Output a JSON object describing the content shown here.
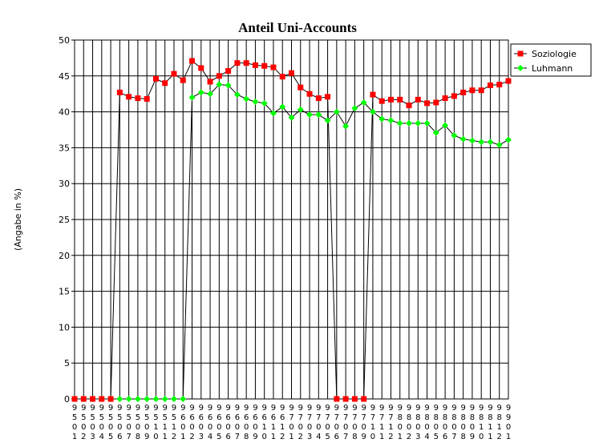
{
  "chart_data": {
    "type": "line",
    "title": "Anteil Uni-Accounts",
    "y_label": "(Angabe in %)",
    "categories": [
      "9501",
      "9502",
      "9503",
      "9504",
      "9505",
      "9506",
      "9507",
      "9508",
      "9509",
      "9510",
      "9511",
      "9512",
      "9601",
      "9602",
      "9603",
      "9604",
      "9605",
      "9606",
      "9607",
      "9608",
      "9609",
      "9610",
      "9611",
      "9612",
      "9701",
      "9702",
      "9703",
      "9704",
      "9705",
      "9706",
      "9707",
      "9708",
      "9709",
      "9710",
      "9711",
      "9712",
      "9801",
      "9802",
      "9803",
      "9804",
      "9805",
      "9806",
      "9807",
      "9808",
      "9809",
      "9810",
      "9811",
      "9812",
      "9901"
    ],
    "series": [
      {
        "name": "Soziologie",
        "color": "#ff0000",
        "marker": "square",
        "values": [
          0,
          0,
          0,
          0,
          0,
          42.7,
          42.1,
          41.9,
          41.8,
          44.6,
          44.0,
          45.3,
          44.4,
          47.1,
          46.1,
          44.2,
          45.0,
          45.7,
          46.8,
          46.8,
          46.5,
          46.4,
          46.2,
          44.9,
          45.4,
          43.4,
          42.5,
          41.9,
          42.1,
          0,
          0,
          0,
          0,
          42.4,
          41.5,
          41.7,
          41.7,
          40.9,
          41.7,
          41.2,
          41.3,
          41.9,
          42.2,
          42.7,
          43.0,
          43.0,
          43.7,
          43.8,
          44.3
        ]
      },
      {
        "name": "Luhmann",
        "color": "#00ff00",
        "marker": "diamond",
        "values": [
          0,
          0,
          0,
          0,
          0,
          0,
          0,
          0,
          0,
          0,
          0,
          0,
          0,
          42.0,
          42.7,
          42.5,
          43.8,
          43.7,
          42.4,
          41.8,
          41.4,
          41.2,
          39.8,
          40.7,
          39.2,
          40.3,
          39.6,
          39.6,
          38.8,
          40.0,
          38.0,
          40.5,
          41.3,
          40.0,
          39.0,
          38.8,
          38.4,
          38.4,
          38.4,
          38.4,
          37.1,
          38.1,
          36.7,
          36.2,
          36.0,
          35.8,
          35.8,
          35.4,
          36.1
        ]
      }
    ],
    "line_color": "#000000",
    "ylim": [
      0,
      50
    ],
    "yticks": [
      0,
      5,
      10,
      15,
      20,
      25,
      30,
      35,
      40,
      45,
      50
    ],
    "grid": true,
    "legend": "right"
  }
}
